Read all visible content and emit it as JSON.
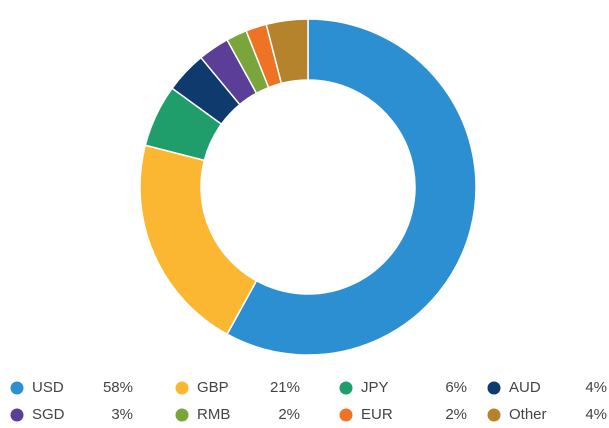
{
  "chart_data": {
    "type": "pie",
    "categories": [
      "USD",
      "GBP",
      "JPY",
      "AUD",
      "SGD",
      "RMB",
      "EUR",
      "Other"
    ],
    "values": [
      58,
      21,
      6,
      4,
      3,
      2,
      2,
      4
    ],
    "value_labels": [
      "58%",
      "21%",
      "6%",
      "4%",
      "3%",
      "2%",
      "2%",
      "4%"
    ],
    "colors": [
      "#2b8fd2",
      "#fbb731",
      "#1f9e6b",
      "#0f3a6e",
      "#5a3e97",
      "#7aa53b",
      "#ef7324",
      "#b5832c"
    ]
  }
}
